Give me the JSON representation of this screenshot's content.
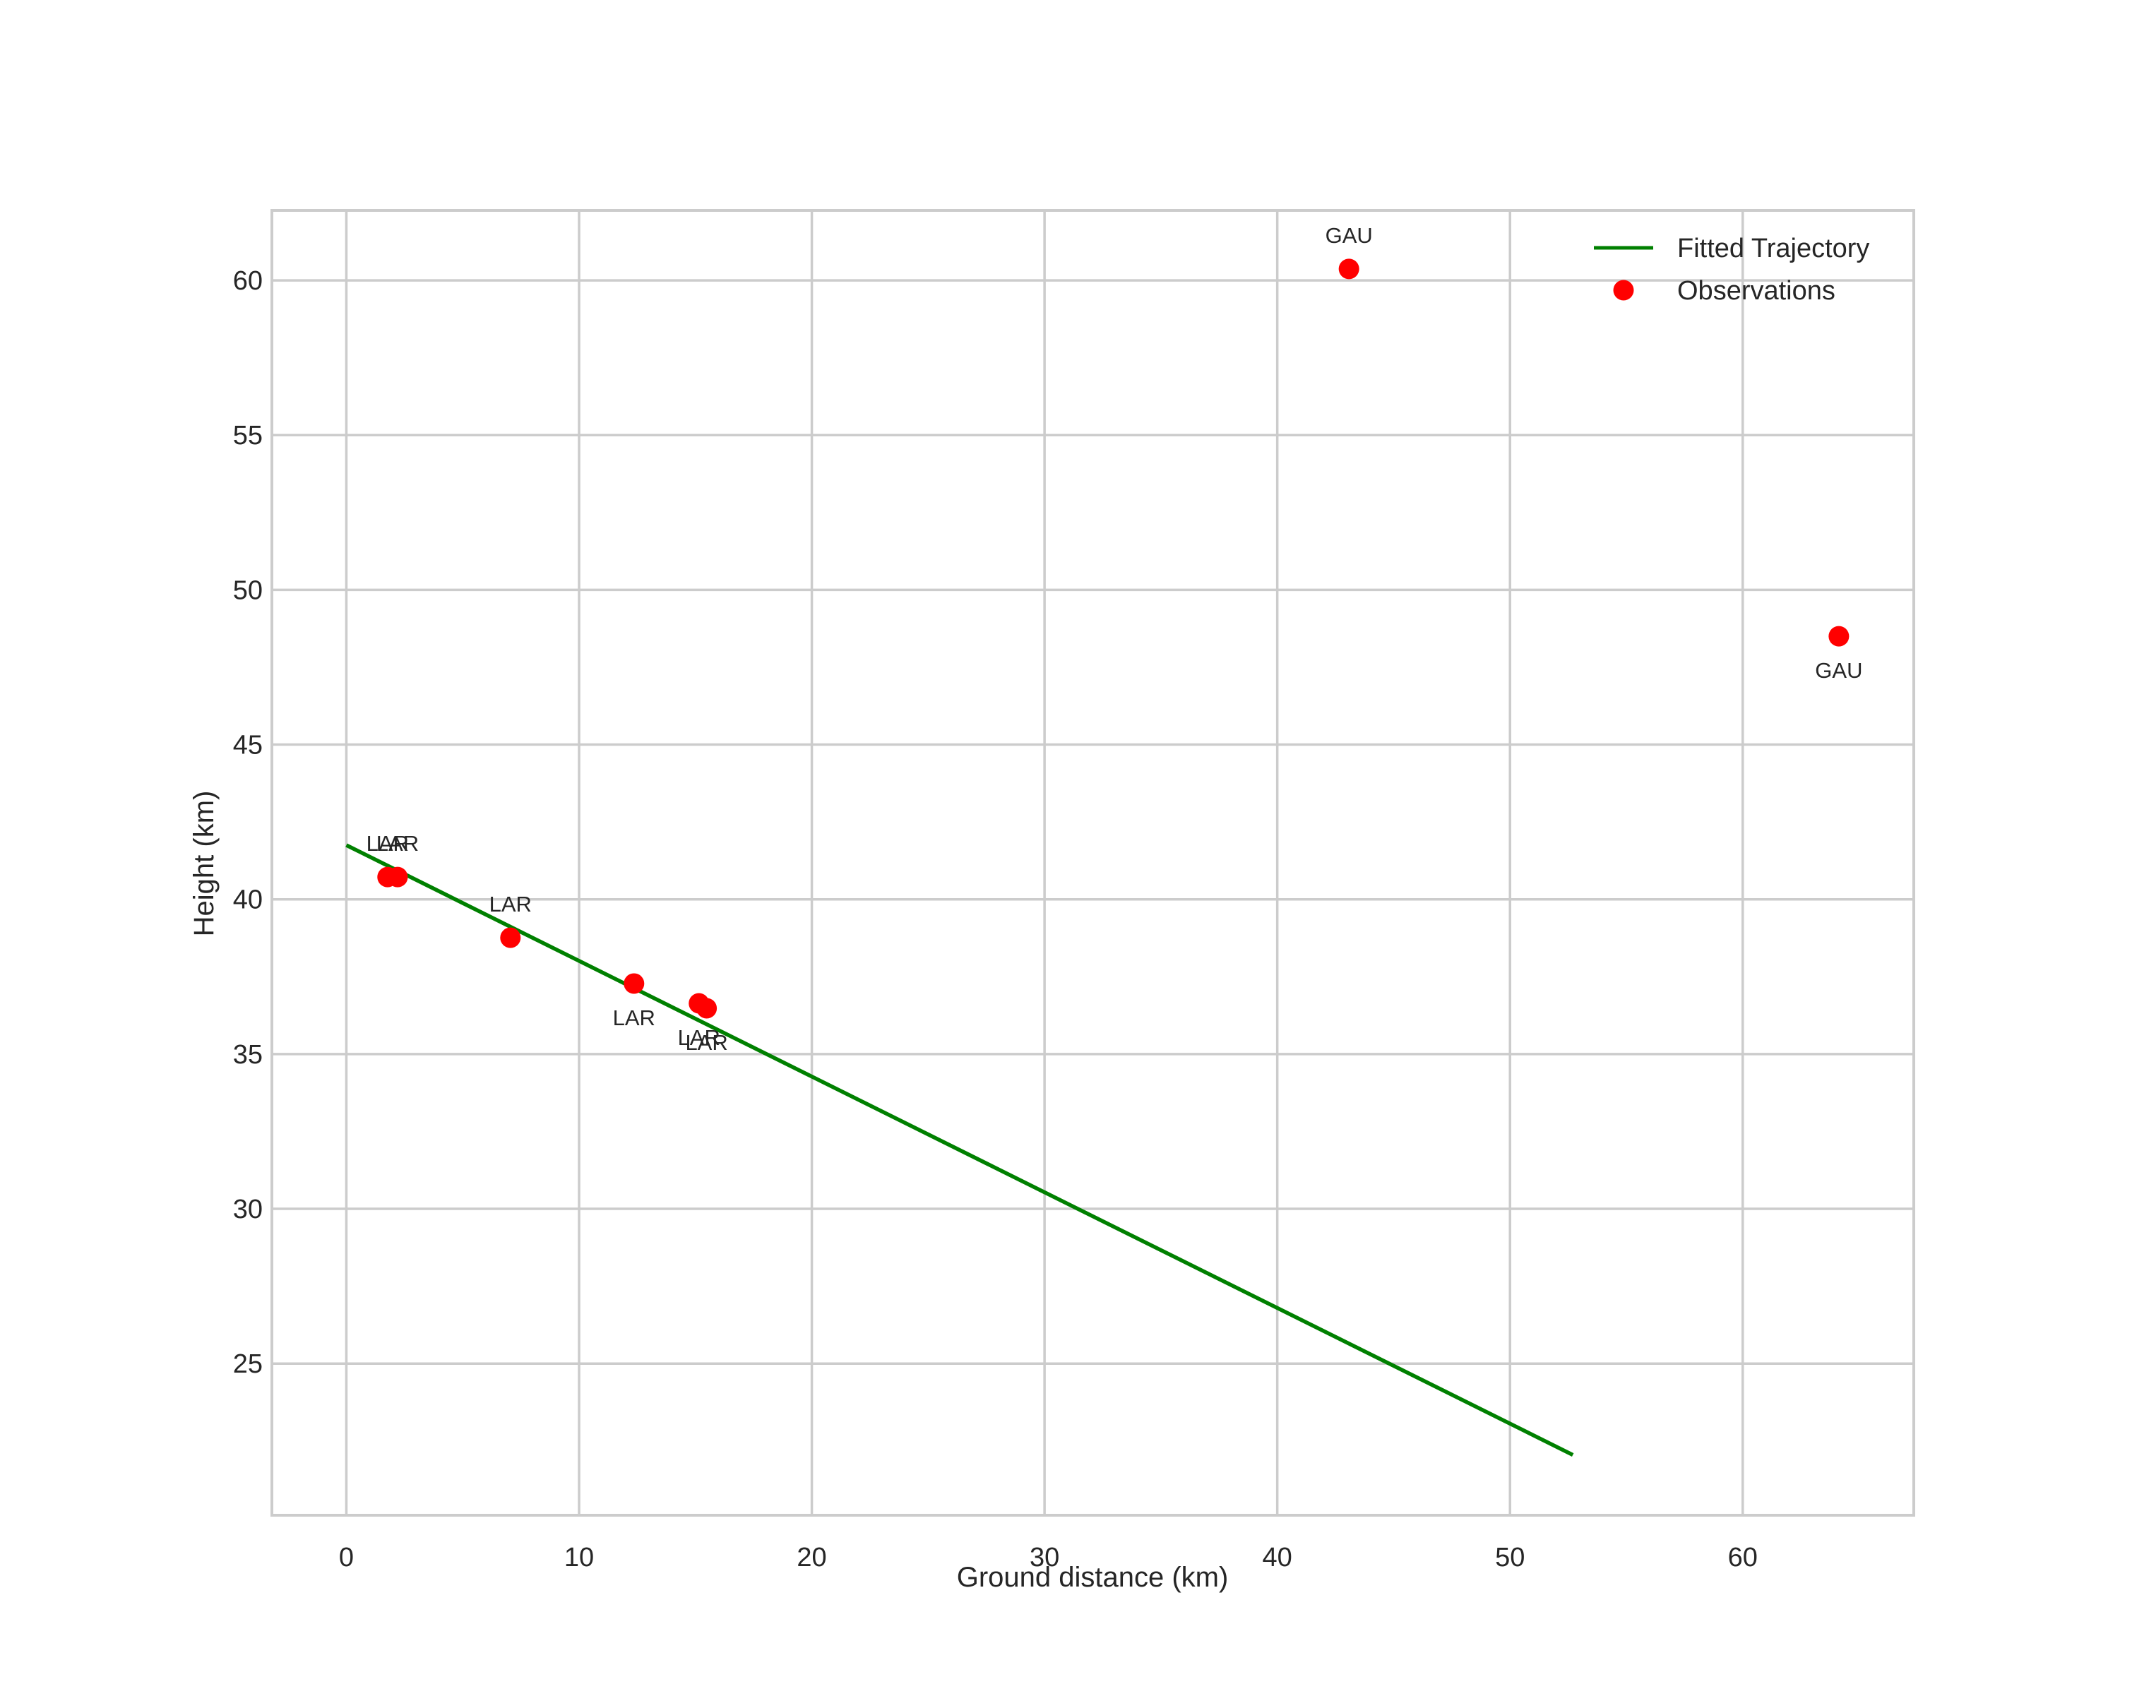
{
  "chart_data": {
    "type": "scatter",
    "title": "",
    "xlabel": "Ground distance (km)",
    "ylabel": "Height (km)",
    "xlim": [
      -3.2,
      67.35
    ],
    "ylim": [
      20.1,
      62.26
    ],
    "grid": true,
    "legend_position": "upper right",
    "xticks": [
      0,
      10,
      20,
      30,
      40,
      50,
      60
    ],
    "yticks": [
      25,
      30,
      35,
      40,
      45,
      50,
      55,
      60
    ],
    "series": [
      {
        "name": "Fitted Trajectory",
        "type": "line",
        "color": "#008000",
        "x": [
          0.0,
          52.7
        ],
        "y": [
          41.75,
          22.05
        ]
      },
      {
        "name": "Observations",
        "type": "scatter",
        "color": "#ff0000",
        "points": [
          {
            "x": 1.77,
            "y": 40.72,
            "label": "LAR",
            "label_pos": "above"
          },
          {
            "x": 2.2,
            "y": 40.72,
            "label": "LAR",
            "label_pos": "above"
          },
          {
            "x": 7.05,
            "y": 38.76,
            "label": "LAR",
            "label_pos": "above"
          },
          {
            "x": 12.36,
            "y": 37.28,
            "label": "LAR",
            "label_pos": "below"
          },
          {
            "x": 15.15,
            "y": 36.64,
            "label": "LAR",
            "label_pos": "below"
          },
          {
            "x": 15.48,
            "y": 36.48,
            "label": "LAR",
            "label_pos": "below"
          },
          {
            "x": 43.08,
            "y": 60.37,
            "label": "GAU",
            "label_pos": "above"
          },
          {
            "x": 64.13,
            "y": 48.5,
            "label": "GAU",
            "label_pos": "below"
          }
        ]
      }
    ]
  },
  "legend": {
    "items": [
      {
        "label": "Fitted Trajectory",
        "kind": "line",
        "color": "#008000"
      },
      {
        "label": "Observations",
        "kind": "marker",
        "color": "#ff0000"
      }
    ]
  },
  "colors": {
    "grid": "#cccccc",
    "frame": "#cccccc",
    "text": "#262626",
    "background": "#ffffff"
  }
}
